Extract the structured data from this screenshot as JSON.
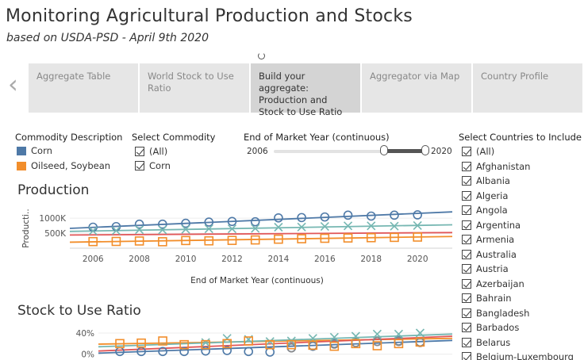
{
  "header": {
    "title": "Monitoring Agricultural Production and Stocks",
    "subtitle": "based on USDA-PSD - April 9th 2020"
  },
  "nav": {
    "prev_icon": "chevron-left-icon",
    "next_icon": "chevron-right-icon",
    "tabs": [
      {
        "label": "Aggregate Table",
        "active": false
      },
      {
        "label": "World Stock to Use Ratio",
        "active": false
      },
      {
        "label": "Build your aggregate: Production and Stock to Use Ratio",
        "active": true
      },
      {
        "label": "Aggregator via Map",
        "active": false
      },
      {
        "label": "Country Profile",
        "active": false
      }
    ]
  },
  "legend": {
    "title": "Commodity Description",
    "items": [
      {
        "label": "Corn",
        "color": "#4e79a7"
      },
      {
        "label": "Oilseed, Soybean",
        "color": "#f28e2b"
      }
    ]
  },
  "commodity_filter": {
    "title": "Select Commodity",
    "options": [
      {
        "label": "(All)",
        "checked": true
      },
      {
        "label": "Corn",
        "checked": true
      }
    ]
  },
  "year_slider": {
    "title": "End of Market Year (continuous)",
    "min_label": "2006",
    "max_label": "2020"
  },
  "country_filter": {
    "title": "Select Countries to Include",
    "options": [
      "(All)",
      "Afghanistan",
      "Albania",
      "Algeria",
      "Angola",
      "Argentina",
      "Armenia",
      "Australia",
      "Austria",
      "Azerbaijan",
      "Bahrain",
      "Bangladesh",
      "Barbados",
      "Belarus",
      "Belgium-Luxembourg"
    ]
  },
  "production": {
    "section_title": "Production",
    "ylabel": "Producti..",
    "xlabel": "End of Market Year (continuous)"
  },
  "stock_ratio": {
    "section_title": "Stock to Use Ratio"
  },
  "chart_data": [
    {
      "type": "scatter",
      "title": "Production",
      "xlabel": "End of Market Year (continuous)",
      "ylabel": "Producti..",
      "xlim": [
        2005,
        2021.5
      ],
      "ylim": [
        0,
        1400
      ],
      "x_ticks": [
        2006,
        2008,
        2010,
        2012,
        2014,
        2016,
        2018,
        2020
      ],
      "y_ticks": [
        {
          "value": 500,
          "label": "500K"
        },
        {
          "value": 1000,
          "label": "1000K"
        }
      ],
      "series": [
        {
          "marker": "circle",
          "color": "#4e79a7",
          "x": [
            2006,
            2007,
            2008,
            2009,
            2010,
            2011,
            2012,
            2013,
            2014,
            2015,
            2016,
            2017,
            2018,
            2019,
            2020
          ],
          "y": [
            700,
            720,
            800,
            800,
            830,
            870,
            890,
            880,
            1010,
            1020,
            1040,
            1100,
            1070,
            1100,
            1110
          ]
        },
        {
          "marker": "x",
          "color": "#76b7b2",
          "x": [
            2006,
            2007,
            2008,
            2009,
            2010,
            2011,
            2012,
            2013,
            2014,
            2015,
            2016,
            2017,
            2018,
            2019,
            2020
          ],
          "y": [
            575,
            585,
            615,
            610,
            630,
            645,
            645,
            660,
            700,
            705,
            725,
            745,
            745,
            735,
            755
          ]
        },
        {
          "marker": "square",
          "color": "#f28e2b",
          "x": [
            2006,
            2007,
            2008,
            2009,
            2010,
            2011,
            2012,
            2013,
            2014,
            2015,
            2016,
            2017,
            2018,
            2019,
            2020
          ],
          "y": [
            220,
            225,
            240,
            215,
            255,
            245,
            260,
            275,
            300,
            315,
            330,
            340,
            350,
            360,
            370
          ]
        }
      ],
      "trend_lines": [
        {
          "color": "#4e79a7",
          "x": [
            2005,
            2021.5
          ],
          "y": [
            660,
            1210
          ]
        },
        {
          "color": "#76b7b2",
          "x": [
            2005,
            2021.5
          ],
          "y": [
            560,
            780
          ]
        },
        {
          "color": "#e15759",
          "x": [
            2005,
            2021.5
          ],
          "y": [
            440,
            520
          ]
        },
        {
          "color": "#f28e2b",
          "x": [
            2005,
            2021.5
          ],
          "y": [
            200,
            390
          ]
        }
      ]
    },
    {
      "type": "scatter",
      "title": "Stock to Use Ratio",
      "xlim": [
        2005,
        2021.5
      ],
      "ylim": [
        -5,
        55
      ],
      "y_ticks": [
        {
          "value": 0,
          "label": "0%"
        },
        {
          "value": 40,
          "label": "40%"
        }
      ],
      "series": [
        {
          "marker": "circle",
          "color": "#4e79a7",
          "x": [
            2006,
            2007,
            2008,
            2009,
            2010,
            2011,
            2012,
            2013,
            2014,
            2015,
            2016,
            2017,
            2018,
            2019,
            2020
          ],
          "y": [
            5,
            5,
            5,
            5,
            6,
            7,
            5,
            4,
            12,
            15,
            20,
            22,
            24,
            25,
            23
          ]
        },
        {
          "marker": "circle",
          "color": "#8a8a8a",
          "x": [
            2014,
            2015,
            2016,
            2017,
            2018,
            2019,
            2020
          ],
          "y": [
            12,
            16,
            19,
            22,
            24,
            24,
            22
          ]
        },
        {
          "marker": "x",
          "color": "#76b7b2",
          "x": [
            2010,
            2011,
            2012,
            2013,
            2014,
            2015,
            2016,
            2017,
            2018,
            2019,
            2020
          ],
          "y": [
            22,
            30,
            28,
            24,
            25,
            30,
            32,
            34,
            38,
            38,
            40
          ]
        },
        {
          "marker": "square",
          "color": "#f28e2b",
          "x": [
            2006,
            2007,
            2008,
            2009,
            2010,
            2011,
            2012,
            2013,
            2014,
            2015,
            2016,
            2017,
            2018,
            2019,
            2020
          ],
          "y": [
            20,
            21,
            25,
            18,
            18,
            20,
            25,
            18,
            18,
            17,
            15,
            20,
            16,
            20,
            23
          ]
        }
      ],
      "trend_lines": [
        {
          "color": "#f28e2b",
          "x": [
            2005,
            2021.5
          ],
          "y": [
            19,
            30
          ]
        },
        {
          "color": "#76b7b2",
          "x": [
            2005,
            2021.5
          ],
          "y": [
            14,
            38
          ]
        },
        {
          "color": "#4e79a7",
          "x": [
            2005,
            2021.5
          ],
          "y": [
            2,
            26
          ]
        },
        {
          "color": "#e15759",
          "x": [
            2005,
            2021.5
          ],
          "y": [
            6,
            34
          ]
        }
      ]
    }
  ]
}
